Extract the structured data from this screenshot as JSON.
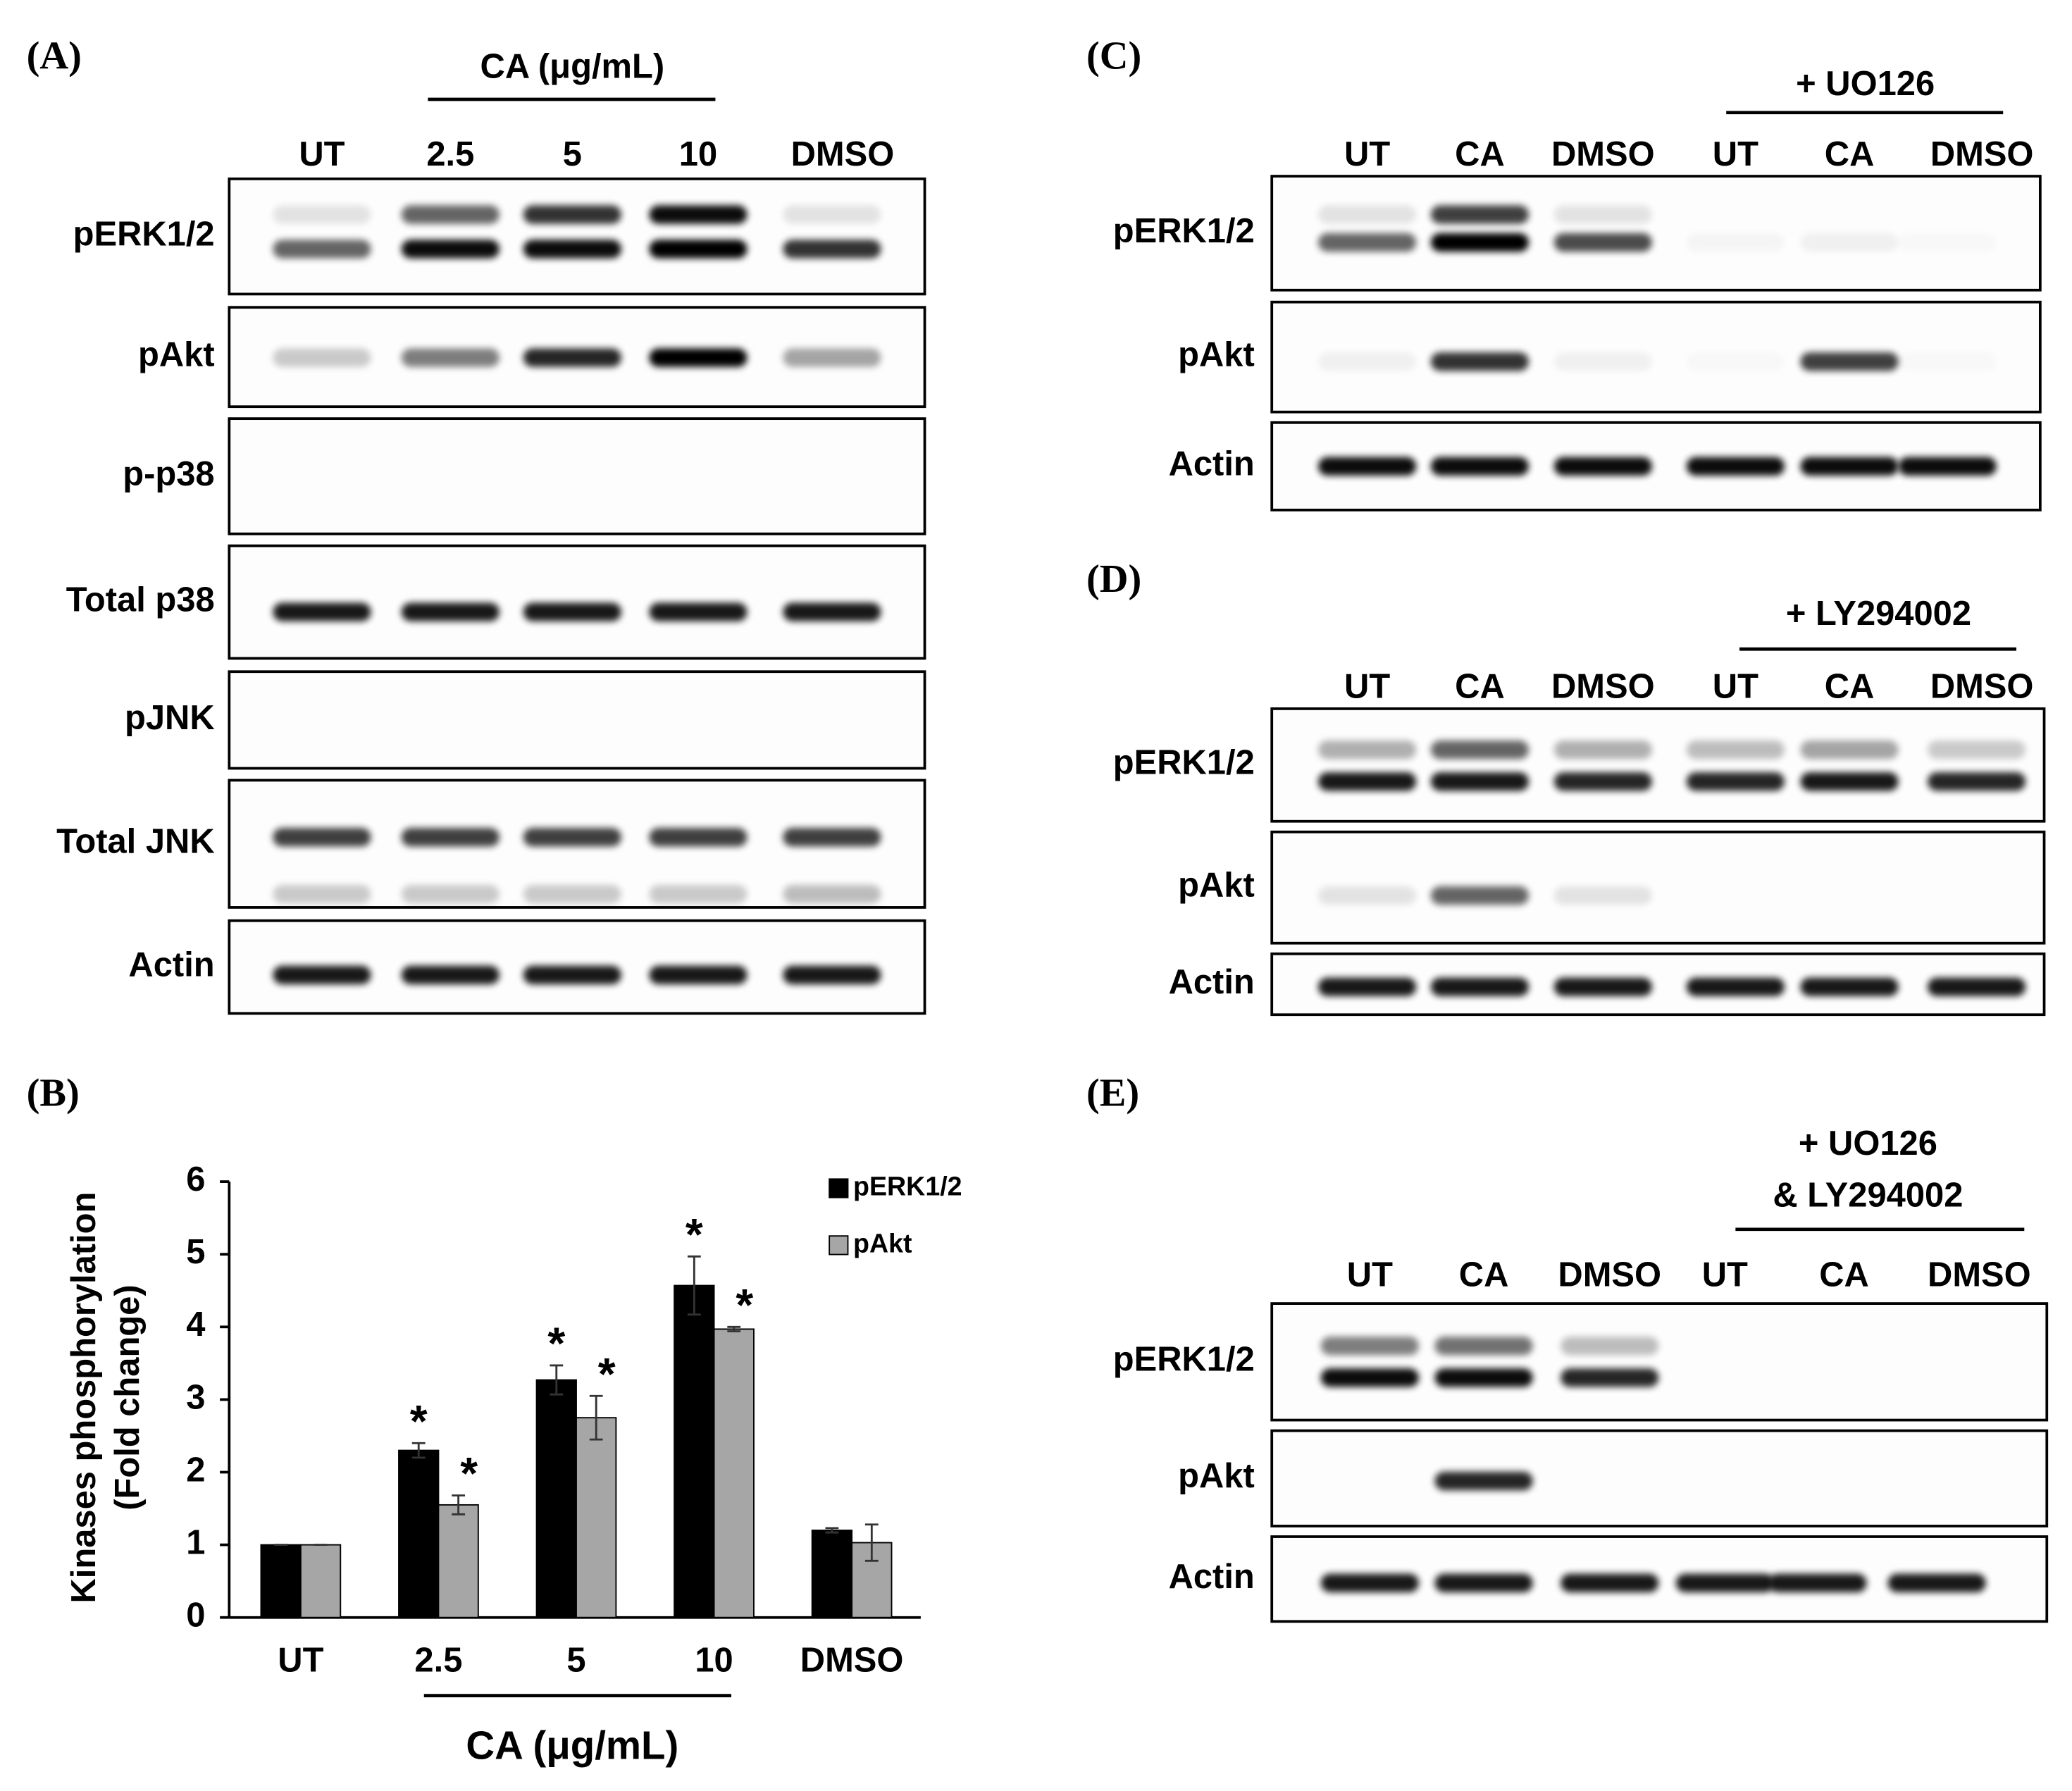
{
  "panels": [
    {
      "label": "(A)",
      "header": [
        "CA (μg/mL)"
      ],
      "lanes": [
        "UT",
        "2.5",
        "5",
        "10",
        "DMSO"
      ],
      "rows": [
        "pERK1/2",
        "pAkt",
        "p-p38",
        "Total p38",
        "pJNK",
        "Total JNK",
        "Actin"
      ]
    },
    {
      "label": "(C)",
      "header": [
        "+ UO126"
      ],
      "lanes": [
        "UT",
        "CA",
        "DMSO",
        "UT",
        "CA",
        "DMSO"
      ],
      "rows": [
        "pERK1/2",
        "pAkt",
        "Actin"
      ]
    },
    {
      "label": "(D)",
      "header": [
        "+ LY294002"
      ],
      "lanes": [
        "UT",
        "CA",
        "DMSO",
        "UT",
        "CA",
        "DMSO"
      ],
      "rows": [
        "pERK1/2",
        "pAkt",
        "Actin"
      ]
    },
    {
      "label": "(E)",
      "header": [
        "+ UO126",
        "& LY294002"
      ],
      "lanes": [
        "UT",
        "CA",
        "DMSO",
        "UT",
        "CA",
        "DMSO"
      ],
      "rows": [
        "pERK1/2",
        "pAkt",
        "Actin"
      ]
    }
  ],
  "chart_data": {
    "type": "bar",
    "label": "(B)",
    "ylabel": [
      "Kinases phosphorylation",
      "(Fold change)"
    ],
    "xlabel": "CA (μg/mL)",
    "categories": [
      "UT",
      "2.5",
      "5",
      "10",
      "DMSO"
    ],
    "series": [
      {
        "name": "pERK1/2",
        "color": "#000000",
        "values": [
          1,
          2.3,
          3.27,
          4.57,
          1.2
        ],
        "errors": [
          0,
          0.1,
          0.2,
          0.4,
          0.03
        ],
        "markers": [
          null,
          "*",
          "*",
          "*",
          null
        ]
      },
      {
        "name": "pAkt",
        "color": "#a6a6a6",
        "values": [
          1,
          1.55,
          2.75,
          3.97,
          1.03
        ],
        "errors": [
          0,
          0.13,
          0.3,
          0.03,
          0.25
        ],
        "markers": [
          null,
          "*",
          "*",
          "*",
          null
        ]
      }
    ],
    "ylim": [
      0,
      6
    ],
    "yticks": [
      0,
      1,
      2,
      3,
      4,
      5,
      6
    ],
    "legend": "top-right",
    "grid": false
  }
}
